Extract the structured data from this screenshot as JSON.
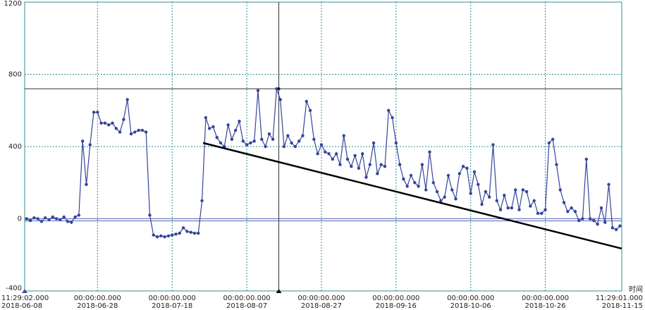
{
  "chart_data": {
    "type": "line",
    "x_axis_label": "时间",
    "color": "#34449a",
    "trend_color": "#000000",
    "cursor_color": "#333333",
    "zero_line_color": "#5a66b0",
    "grid": true,
    "grid_color": "#2f8f8f",
    "ylim": [
      -400,
      1200
    ],
    "yticks": [
      -400,
      0,
      400,
      800,
      1200
    ],
    "xlim": [
      "2018-06-08T11:29:02",
      "2018-11-15T11:29:01"
    ],
    "xticks": [
      {
        "value": "2018-06-08T11:29:02",
        "label": [
          "11:29:02.000",
          "2018-06-08"
        ]
      },
      {
        "value": "2018-06-28T00:00:00",
        "label": [
          "00:00:00.000",
          "2018-06-28"
        ]
      },
      {
        "value": "2018-07-18T00:00:00",
        "label": [
          "00:00:00.000",
          "2018-07-18"
        ]
      },
      {
        "value": "2018-08-07T00:00:00",
        "label": [
          "00:00:00.000",
          "2018-08-07"
        ]
      },
      {
        "value": "2018-08-27T00:00:00",
        "label": [
          "00:00:00.000",
          "2018-08-27"
        ]
      },
      {
        "value": "2018-09-16T00:00:00",
        "label": [
          "00:00:00.000",
          "2018-09-16"
        ]
      },
      {
        "value": "2018-10-06T00:00:00",
        "label": [
          "00:00:00.000",
          "2018-10-06"
        ]
      },
      {
        "value": "2018-10-26T00:00:00",
        "label": [
          "00:00:00.000",
          "2018-10-26"
        ]
      },
      {
        "value": "2018-11-15T11:29:01",
        "label": [
          "11:29:01.000",
          "2018-11-15"
        ]
      }
    ],
    "cursor_x": "2018-08-15T14:00:00",
    "cursor_y": 720,
    "trend_line": {
      "x": [
        "2018-07-26T07:00:00",
        "2018-11-15T11:29:01"
      ],
      "y": [
        420,
        -165
      ]
    },
    "x": [
      "2018-06-09",
      "2018-06-10",
      "2018-06-11",
      "2018-06-12",
      "2018-06-13",
      "2018-06-14",
      "2018-06-15",
      "2018-06-16",
      "2018-06-17",
      "2018-06-18",
      "2018-06-19",
      "2018-06-20",
      "2018-06-21",
      "2018-06-22",
      "2018-06-23",
      "2018-06-24",
      "2018-06-25",
      "2018-06-26",
      "2018-06-27",
      "2018-06-28",
      "2018-06-29",
      "2018-06-30",
      "2018-07-01",
      "2018-07-02",
      "2018-07-03",
      "2018-07-04",
      "2018-07-05",
      "2018-07-06",
      "2018-07-07",
      "2018-07-08",
      "2018-07-09",
      "2018-07-10",
      "2018-07-11",
      "2018-07-12",
      "2018-07-13",
      "2018-07-14",
      "2018-07-15",
      "2018-07-16",
      "2018-07-17",
      "2018-07-18",
      "2018-07-19",
      "2018-07-20",
      "2018-07-21",
      "2018-07-22",
      "2018-07-23",
      "2018-07-24",
      "2018-07-25",
      "2018-07-26",
      "2018-07-27",
      "2018-07-28",
      "2018-07-29",
      "2018-07-30",
      "2018-07-31",
      "2018-08-01",
      "2018-08-02",
      "2018-08-03",
      "2018-08-04",
      "2018-08-05",
      "2018-08-06",
      "2018-08-07",
      "2018-08-08",
      "2018-08-09",
      "2018-08-10",
      "2018-08-11",
      "2018-08-12",
      "2018-08-13",
      "2018-08-14",
      "2018-08-15",
      "2018-08-16",
      "2018-08-17",
      "2018-08-18",
      "2018-08-19",
      "2018-08-20",
      "2018-08-21",
      "2018-08-22",
      "2018-08-23",
      "2018-08-24",
      "2018-08-25",
      "2018-08-26",
      "2018-08-27",
      "2018-08-28",
      "2018-08-29",
      "2018-08-30",
      "2018-08-31",
      "2018-09-01",
      "2018-09-02",
      "2018-09-03",
      "2018-09-04",
      "2018-09-05",
      "2018-09-06",
      "2018-09-07",
      "2018-09-08",
      "2018-09-09",
      "2018-09-10",
      "2018-09-11",
      "2018-09-12",
      "2018-09-13",
      "2018-09-14",
      "2018-09-15",
      "2018-09-16",
      "2018-09-17",
      "2018-09-18",
      "2018-09-19",
      "2018-09-20",
      "2018-09-21",
      "2018-09-22",
      "2018-09-23",
      "2018-09-24",
      "2018-09-25",
      "2018-09-26",
      "2018-09-27",
      "2018-09-28",
      "2018-09-29",
      "2018-09-30",
      "2018-10-01",
      "2018-10-02",
      "2018-10-03",
      "2018-10-04",
      "2018-10-05",
      "2018-10-06",
      "2018-10-07",
      "2018-10-08",
      "2018-10-09",
      "2018-10-10",
      "2018-10-11",
      "2018-10-12",
      "2018-10-13",
      "2018-10-14",
      "2018-10-15",
      "2018-10-16",
      "2018-10-17",
      "2018-10-18",
      "2018-10-19",
      "2018-10-20",
      "2018-10-21",
      "2018-10-22",
      "2018-10-23",
      "2018-10-24",
      "2018-10-25",
      "2018-10-26",
      "2018-10-27",
      "2018-10-28",
      "2018-10-29",
      "2018-10-30",
      "2018-10-31",
      "2018-11-01",
      "2018-11-02",
      "2018-11-03",
      "2018-11-04",
      "2018-11-05",
      "2018-11-06",
      "2018-11-07",
      "2018-11-08",
      "2018-11-09",
      "2018-11-10",
      "2018-11-11",
      "2018-11-12",
      "2018-11-13",
      "2018-11-14",
      "2018-11-15"
    ],
    "values": [
      0,
      -10,
      5,
      0,
      -15,
      5,
      -5,
      10,
      0,
      -5,
      10,
      -15,
      -20,
      10,
      20,
      430,
      190,
      410,
      590,
      590,
      530,
      530,
      520,
      530,
      500,
      480,
      550,
      660,
      470,
      480,
      490,
      490,
      480,
      20,
      -90,
      -100,
      -95,
      -100,
      -95,
      -90,
      -85,
      -80,
      -50,
      -70,
      -75,
      -80,
      -80,
      100,
      560,
      500,
      510,
      450,
      420,
      400,
      520,
      440,
      490,
      540,
      430,
      410,
      420,
      430,
      710,
      440,
      400,
      470,
      440,
      720,
      660,
      400,
      460,
      420,
      400,
      430,
      460,
      650,
      600,
      440,
      360,
      410,
      370,
      360,
      330,
      360,
      300,
      460,
      330,
      290,
      350,
      280,
      360,
      230,
      300,
      420,
      250,
      300,
      290,
      600,
      560,
      420,
      300,
      220,
      180,
      240,
      200,
      180,
      300,
      160,
      370,
      200,
      150,
      100,
      120,
      240,
      160,
      110,
      250,
      290,
      280,
      140,
      260,
      190,
      80,
      150,
      120,
      410,
      100,
      50,
      130,
      60,
      60,
      160,
      50,
      160,
      150,
      70,
      100,
      30,
      30,
      50,
      420,
      440,
      300,
      160,
      90,
      40,
      60,
      40,
      -10,
      0,
      330,
      0,
      -10,
      -30,
      60,
      -20,
      190,
      -50,
      -60,
      -40
    ]
  }
}
